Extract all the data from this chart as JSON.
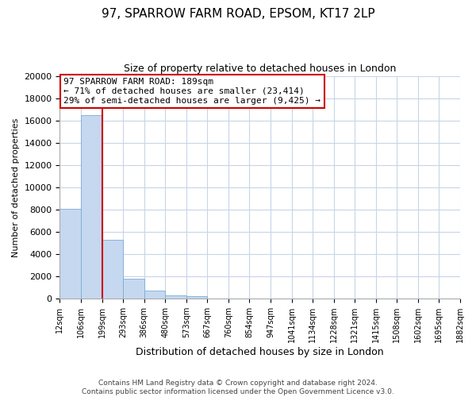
{
  "title": "97, SPARROW FARM ROAD, EPSOM, KT17 2LP",
  "subtitle": "Size of property relative to detached houses in London",
  "bar_values": [
    8100,
    16500,
    5300,
    1800,
    750,
    300,
    200,
    0,
    0,
    0,
    0,
    0,
    0,
    0,
    0,
    0,
    0,
    0,
    0
  ],
  "bin_labels": [
    "12sqm",
    "106sqm",
    "199sqm",
    "293sqm",
    "386sqm",
    "480sqm",
    "573sqm",
    "667sqm",
    "760sqm",
    "854sqm",
    "947sqm",
    "1041sqm",
    "1134sqm",
    "1228sqm",
    "1321sqm",
    "1415sqm",
    "1508sqm",
    "1602sqm",
    "1695sqm",
    "1882sqm"
  ],
  "bar_color": "#c5d8f0",
  "bar_edge_color": "#7aadd4",
  "marker_color": "#cc0000",
  "ylim": [
    0,
    20000
  ],
  "yticks": [
    0,
    2000,
    4000,
    6000,
    8000,
    10000,
    12000,
    14000,
    16000,
    18000,
    20000
  ],
  "ylabel": "Number of detached properties",
  "xlabel": "Distribution of detached houses by size in London",
  "annotation_title": "97 SPARROW FARM ROAD: 189sqm",
  "annotation_line1": "← 71% of detached houses are smaller (23,414)",
  "annotation_line2": "29% of semi-detached houses are larger (9,425) →",
  "annotation_box_color": "#ffffff",
  "annotation_box_edge": "#cc0000",
  "footer_line1": "Contains HM Land Registry data © Crown copyright and database right 2024.",
  "footer_line2": "Contains public sector information licensed under the Open Government Licence v3.0.",
  "background_color": "#ffffff",
  "grid_color": "#c8d4e8",
  "title_fontsize": 11,
  "subtitle_fontsize": 9
}
